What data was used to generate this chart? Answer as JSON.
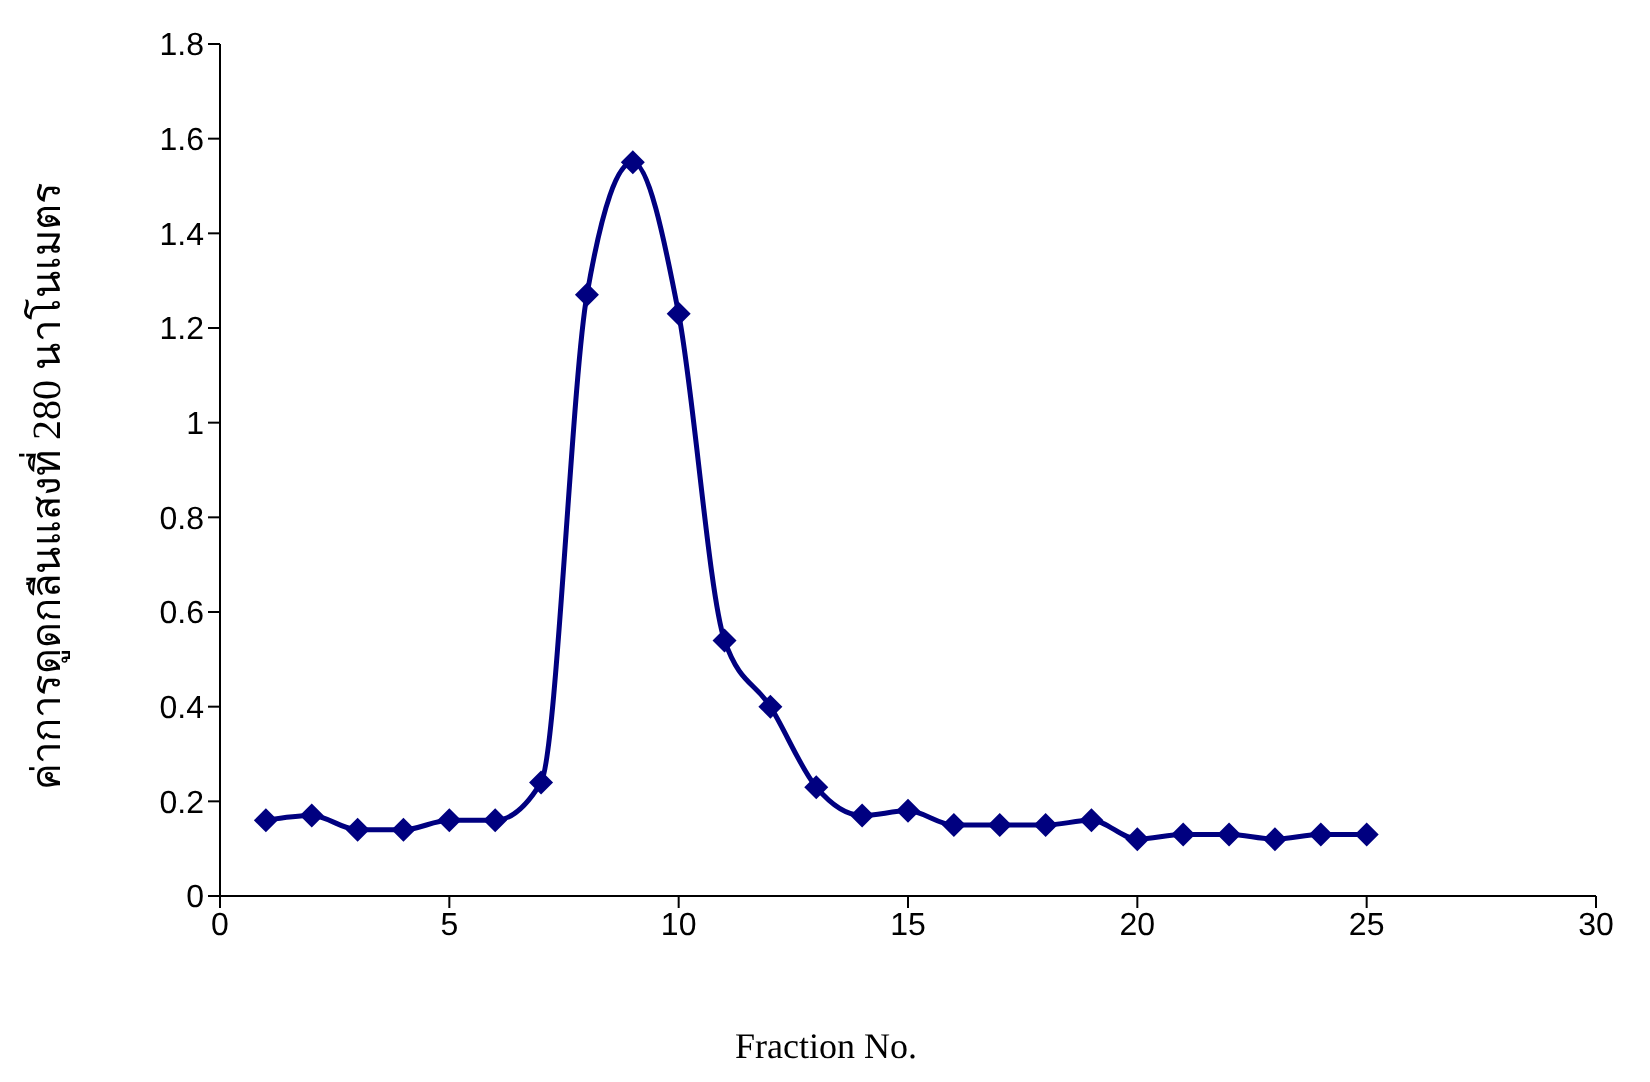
{
  "chart_data": {
    "type": "line",
    "xlabel": "Fraction No.",
    "ylabel": "ค่าการดูดกลืนแสงที่ 280 นาโนเมตร",
    "x": [
      1,
      2,
      3,
      4,
      5,
      6,
      7,
      8,
      9,
      10,
      11,
      12,
      13,
      14,
      15,
      16,
      17,
      18,
      19,
      20,
      21,
      22,
      23,
      24,
      25
    ],
    "series": [
      {
        "color": "#000080",
        "values": [
          0.16,
          0.17,
          0.14,
          0.14,
          0.16,
          0.16,
          0.24,
          1.27,
          1.55,
          1.23,
          0.54,
          0.4,
          0.23,
          0.17,
          0.18,
          0.15,
          0.15,
          0.15,
          0.16,
          0.12,
          0.13,
          0.13,
          0.12,
          0.13,
          0.13
        ]
      }
    ],
    "xlim": [
      0,
      30
    ],
    "xticks": [
      0,
      5,
      10,
      15,
      20,
      25,
      30
    ],
    "ylim": [
      0,
      1.8
    ],
    "yticks": [
      0,
      0.2,
      0.4,
      0.6,
      0.8,
      1,
      1.2,
      1.4,
      1.6,
      1.8
    ],
    "marker": "diamond",
    "grid": false,
    "legend": false
  }
}
